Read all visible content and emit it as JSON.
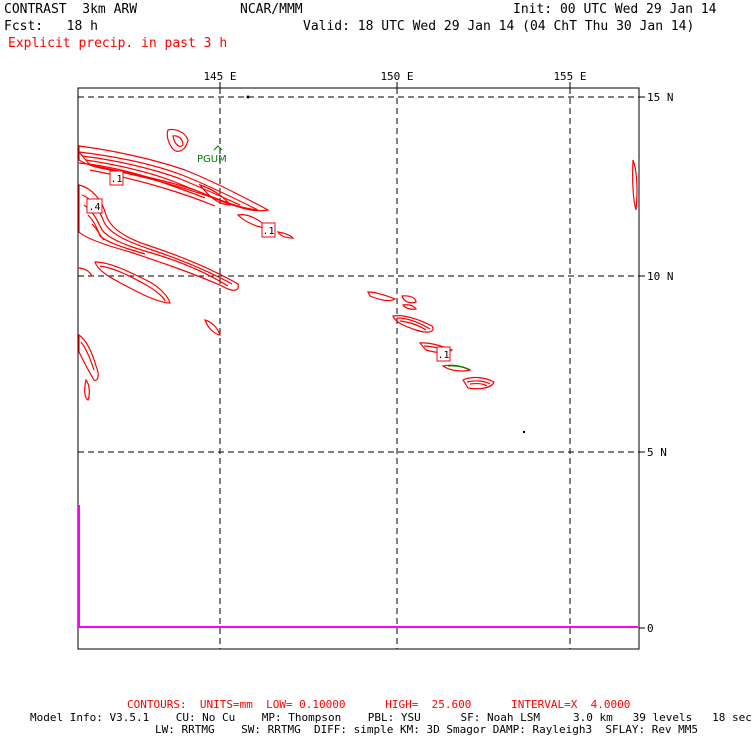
{
  "header": {
    "model": "CONTRAST  3km ARW",
    "center": "NCAR/MMM",
    "init": "Init: 00 UTC Wed 29 Jan 14",
    "fcst": "Fcst:   18 h",
    "valid": "Valid: 18 UTC Wed 29 Jan 14 (04 ChT Thu 30 Jan 14)",
    "field": "Explicit precip. in past 3 h"
  },
  "map": {
    "lon_labels": [
      "145 E",
      "150 E",
      "155 E"
    ],
    "lat_labels": [
      "15 N",
      "10 N",
      "5 N"
    ],
    "zero_label": "0",
    "contour_labels": [
      ".1",
      ".4",
      ".1",
      ".1"
    ],
    "station_label": "PGUM",
    "colors": {
      "precip": "#ff0000",
      "marker": "#ff00ff",
      "station": "#007a00",
      "grid": "#000000"
    }
  },
  "footer": {
    "contours": "CONTOURS:  UNITS=mm  LOW= 0.10000      HIGH=  25.600      INTERVAL=X  4.0000",
    "model_info_1": "Model Info: V3.5.1    CU: No Cu    MP: Thompson    PBL: YSU      SF: Noah LSM     3.0 km   39 levels   18 sec",
    "model_info_2": "LW: RRTMG    SW: RRTMG  DIFF: simple KM: 3D Smagor DAMP: Rayleigh3  SFLAY: Rev MM5"
  }
}
